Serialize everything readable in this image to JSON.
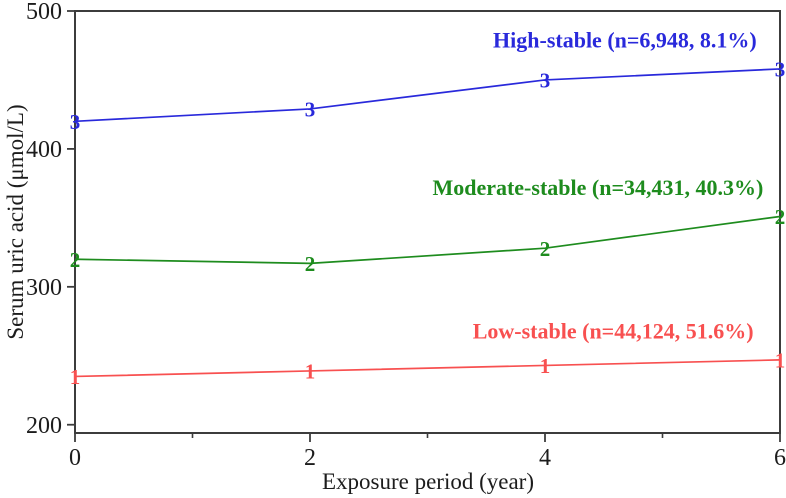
{
  "chart_data": {
    "type": "line",
    "title": "",
    "xlabel": "Exposure period (year)",
    "ylabel": "Serum uric acid (μmol/L)",
    "xlim": [
      0,
      6
    ],
    "ylim": [
      194,
      500
    ],
    "x_major_ticks": [
      0,
      2,
      4,
      6
    ],
    "x_minor_ticks": [
      1,
      3,
      5
    ],
    "y_major_ticks": [
      200,
      300,
      400,
      500
    ],
    "grid": false,
    "frame": true,
    "legend_position": "annotations-on-plot",
    "x": [
      0,
      2,
      4,
      6
    ],
    "series": [
      {
        "name": "high-stable",
        "annotation": "High-stable (n=6,948, 8.1%)",
        "marker": "3",
        "color": "#2929db",
        "values": [
          420,
          429,
          450,
          458
        ],
        "annotation_anchor": {
          "x": 4.68,
          "y": 479
        }
      },
      {
        "name": "moderate-stable",
        "annotation": "Moderate-stable (n=34,431, 40.3%)",
        "marker": "2",
        "color": "#1e8c1e",
        "values": [
          320,
          317,
          328,
          351
        ],
        "annotation_anchor": {
          "x": 4.45,
          "y": 372
        }
      },
      {
        "name": "low-stable",
        "annotation": "Low-stable (n=44,124, 51.6%)",
        "marker": "1",
        "color": "#f85050",
        "values": [
          235,
          239,
          243,
          247
        ],
        "annotation_anchor": {
          "x": 4.58,
          "y": 268
        }
      }
    ],
    "frame_color": "#3c3c3c",
    "text_color": "#1c1c1c"
  }
}
